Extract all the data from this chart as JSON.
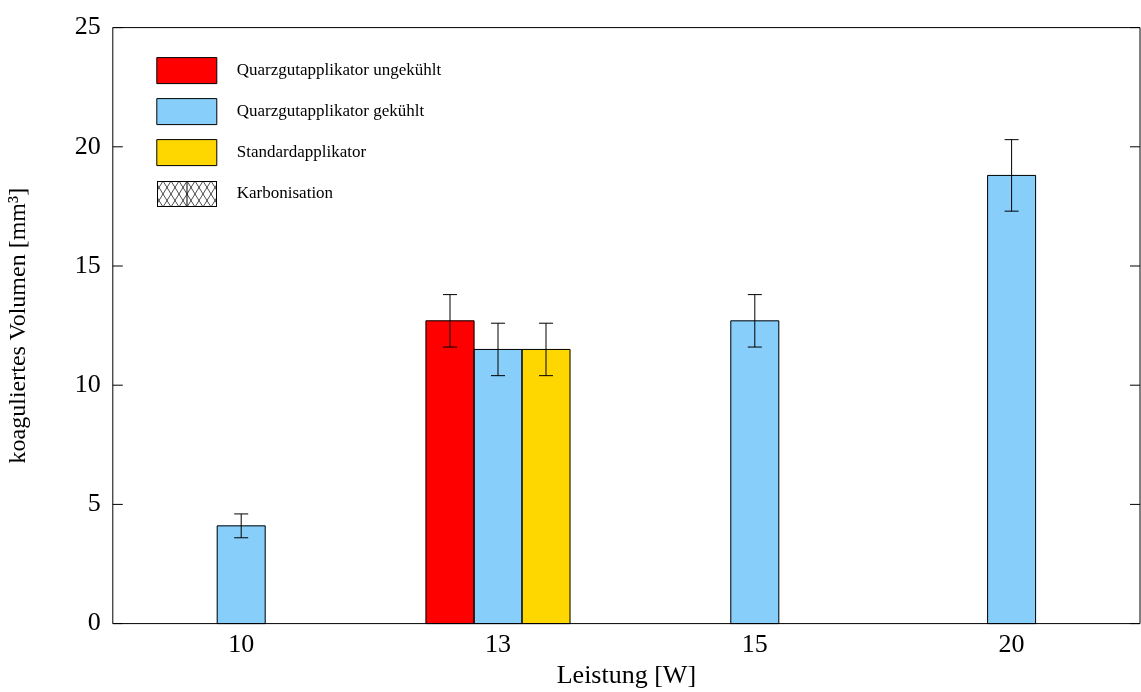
{
  "chart_data": {
    "type": "bar",
    "xlabel": "Leistung [W]",
    "ylabel": "koaguliertes Volumen [mm³]",
    "categories": [
      "10",
      "13",
      "15",
      "20"
    ],
    "series": [
      {
        "name": "Quarzgutapplikator ungekühlt",
        "color": "#ff0000",
        "values": [
          null,
          12.7,
          null,
          null
        ],
        "errors": [
          null,
          1.1,
          null,
          null
        ]
      },
      {
        "name": "Quarzgutapplikator gekühlt",
        "color": "#87cefa",
        "values": [
          4.1,
          11.5,
          12.7,
          18.8
        ],
        "errors": [
          0.5,
          1.1,
          1.1,
          1.5
        ]
      },
      {
        "name": "Standardapplikator",
        "color": "#ffd700",
        "values": [
          null,
          11.5,
          null,
          null
        ],
        "errors": [
          null,
          1.1,
          null,
          null
        ]
      }
    ],
    "annotations": [
      "Karbonisation"
    ],
    "ylim": [
      0,
      25
    ],
    "yticks": [
      0,
      5,
      10,
      15,
      20,
      25
    ],
    "grid": false,
    "legend": "top left"
  }
}
